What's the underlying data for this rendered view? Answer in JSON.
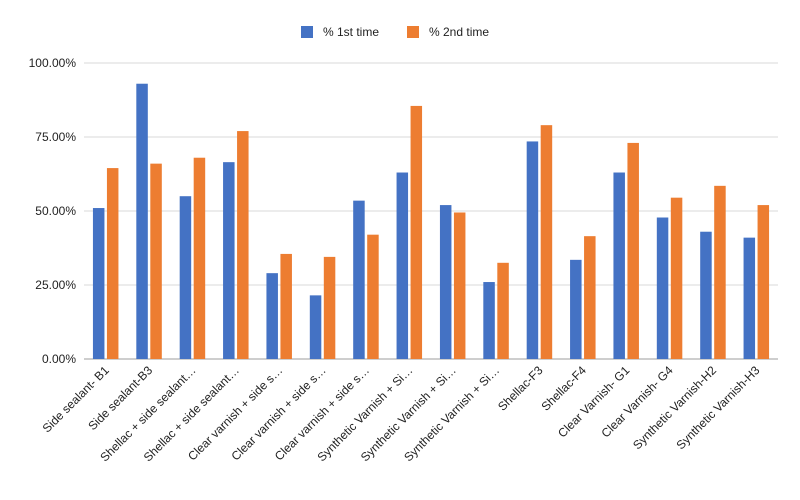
{
  "chart_data": {
    "type": "bar",
    "title": "",
    "xlabel": "",
    "ylabel": "",
    "ylim": [
      0,
      1.0
    ],
    "yticks": [
      0,
      0.25,
      0.5,
      0.75,
      1.0
    ],
    "ytick_labels": [
      "0.00%",
      "25.00%",
      "50.00%",
      "75.00%",
      "100.00%"
    ],
    "grid": true,
    "legend_position": "top",
    "categories": [
      "Side sealant- B1",
      "Side sealant-B3",
      "Shellac + side sealant…",
      "Shellac + side sealant…",
      "Clear varnish + side s…",
      "Clear varnish + side s…",
      "Clear varnish + side s…",
      "Synthetic Varnish + Si…",
      "Synthetic Varnish + Si…",
      "Synthetic Varnish + Si…",
      "Shellac-F3",
      "Shellac-F4",
      "Clear Varnish- G1",
      "Clear Varnish- G4",
      "Synthetic Varnish-H2",
      "Synthetic Varnish-H3"
    ],
    "series": [
      {
        "name": "% 1st time",
        "color": "#4472C4",
        "values": [
          0.51,
          0.93,
          0.55,
          0.665,
          0.29,
          0.215,
          0.535,
          0.63,
          0.52,
          0.26,
          0.735,
          0.335,
          0.63,
          0.478,
          0.43,
          0.41
        ]
      },
      {
        "name": "% 2nd time",
        "color": "#ED7D31",
        "values": [
          0.645,
          0.66,
          0.68,
          0.77,
          0.355,
          0.345,
          0.42,
          0.855,
          0.495,
          0.325,
          0.79,
          0.415,
          0.73,
          0.545,
          0.585,
          0.52
        ]
      }
    ]
  }
}
